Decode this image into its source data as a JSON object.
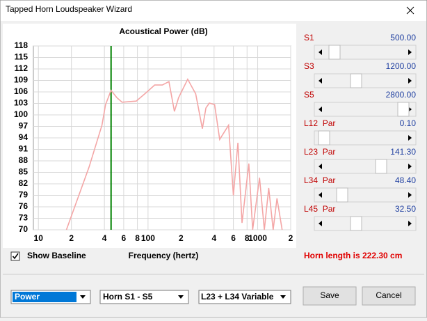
{
  "window": {
    "title": "Tapped Horn Loudspeaker Wizard"
  },
  "chart_data": {
    "type": "line",
    "title": "Acoustical Power (dB)",
    "x_label": "Frequency (hertz)",
    "log_x": true,
    "xlim": [
      9,
      2000
    ],
    "ylim": [
      70,
      118
    ],
    "grid": true,
    "yticks": [
      70,
      73,
      76,
      79,
      82,
      85,
      88,
      91,
      94,
      97,
      100,
      103,
      106,
      109,
      112,
      115,
      118
    ],
    "xticks": [
      10,
      {
        "value": 20,
        "label": "2"
      },
      {
        "value": 40,
        "label": "4"
      },
      {
        "value": 60,
        "label": "6"
      },
      {
        "value": 80,
        "label": "8"
      },
      100,
      {
        "value": 200,
        "label": "2"
      },
      {
        "value": 400,
        "label": "4"
      },
      {
        "value": 600,
        "label": "6"
      },
      {
        "value": 800,
        "label": "8"
      },
      1000,
      {
        "value": 2000,
        "label": "2"
      }
    ],
    "marker": {
      "x": 46,
      "color": "#008000"
    },
    "series": [
      {
        "color": "#f4a6a6",
        "x": [
          18,
          29,
          38,
          41,
          46,
          52,
          58,
          78,
          96,
          115,
          135,
          155,
          174,
          190,
          230,
          272,
          313,
          337,
          362,
          405,
          450,
          543,
          600,
          660,
          720,
          830,
          900,
          1040,
          1150,
          1260,
          1385,
          1500,
          1670
        ],
        "values": [
          70,
          86.4,
          97.3,
          102.7,
          106.4,
          104.5,
          103.3,
          103.6,
          105.8,
          107.8,
          107.8,
          108.7,
          100.9,
          104.5,
          109.3,
          105.5,
          96.4,
          101.8,
          103.1,
          102.7,
          93.6,
          97.3,
          79,
          92.7,
          71.8,
          87.3,
          70,
          83.6,
          70,
          80.9,
          70,
          78.2,
          70
        ]
      }
    ]
  },
  "checkbox": {
    "label": "Show Baseline",
    "checked": true
  },
  "sliders": [
    {
      "label": "S1",
      "value": "500.00"
    },
    {
      "label": "S3",
      "value": "1200.00"
    },
    {
      "label": "S5",
      "value": "2800.00"
    },
    {
      "label": "L12  Par",
      "value": "0.10"
    },
    {
      "label": "L23  Par",
      "value": "141.30"
    },
    {
      "label": "L34  Par",
      "value": "48.40"
    },
    {
      "label": "L45  Par",
      "value": "32.50"
    }
  ],
  "status": "Horn length is 222.30 cm",
  "dropdowns": [
    "Power",
    "Horn S1 - S5",
    "L23 + L34 Variable"
  ],
  "buttons": [
    "Save",
    "Cancel"
  ]
}
